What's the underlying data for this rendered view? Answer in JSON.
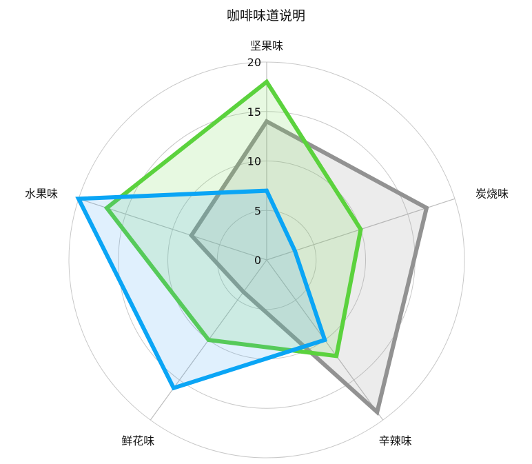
{
  "chart_data": {
    "type": "radar",
    "title": "咖啡味道说明",
    "axes": [
      "坚果味",
      "炭烧味",
      "辛辣味",
      "鲜花味",
      "水果味"
    ],
    "rlim": [
      0,
      20
    ],
    "ticks": [
      "0",
      "5",
      "10",
      "15",
      "20"
    ],
    "grid": true,
    "series": [
      {
        "values": [
          14,
          17,
          19,
          4,
          8
        ],
        "color": "#929292",
        "fill": "rgba(150,150,150,0.18)"
      },
      {
        "values": [
          18,
          10,
          12,
          10,
          17
        ],
        "color": "#5bd23d",
        "fill": "rgba(120,220,90,0.18)"
      },
      {
        "values": [
          7,
          3,
          10,
          16,
          20
        ],
        "color": "#0aa5f5",
        "fill": "rgba(60,160,240,0.16)"
      }
    ]
  }
}
